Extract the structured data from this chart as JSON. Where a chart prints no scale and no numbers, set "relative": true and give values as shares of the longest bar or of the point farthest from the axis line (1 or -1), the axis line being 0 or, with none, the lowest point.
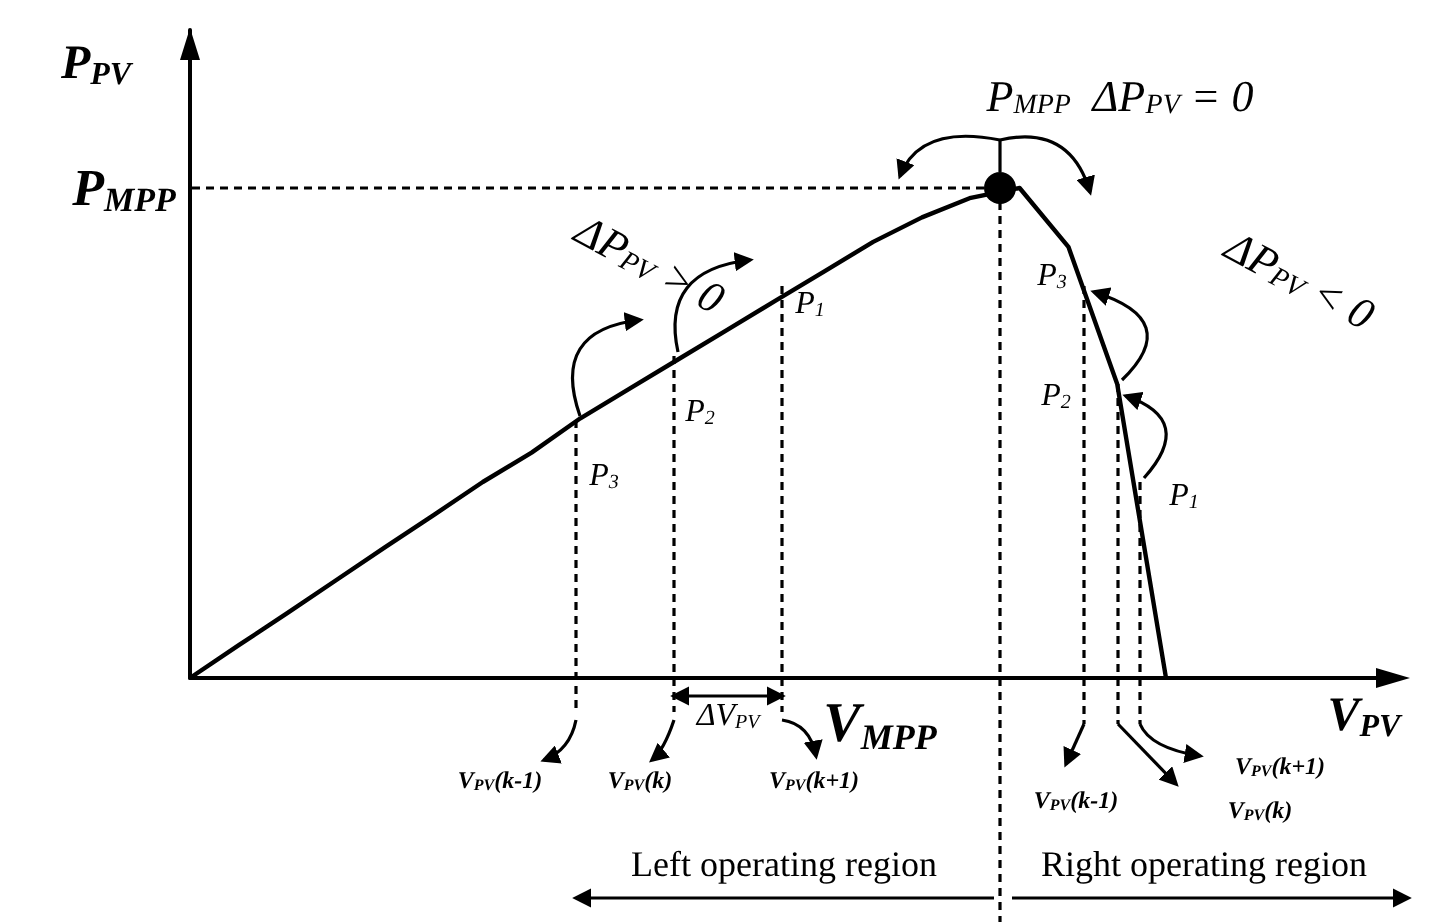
{
  "chart_data": {
    "type": "line",
    "relative": true,
    "xlabel": "V$_{PV}$",
    "ylabel": "P$_{PV}$",
    "categories": [
      null,
      null,
      null,
      null,
      null,
      null,
      null,
      null,
      null,
      null,
      null,
      null,
      null,
      null,
      null,
      null,
      null,
      null,
      null,
      null,
      null,
      null,
      null,
      null,
      null
    ],
    "series": [
      {
        "color": "#000000",
        "values": [
          0,
          0.067,
          0.133,
          0.2,
          0.267,
          0.333,
          0.4,
          0.46,
          0.53,
          0.59,
          0.65,
          0.71,
          0.77,
          0.83,
          0.89,
          0.94,
          0.98,
          1,
          0.88,
          0.6,
          0,
          null,
          null,
          null,
          null
        ]
      }
    ],
    "annotations": [
      "P$_{MPP}$",
      "P$_{MPP}$  ΔP$_{PV}$ = 0",
      "ΔP$_{PV}$ > 0",
      "ΔP$_{PV}$ < 0",
      "P$_{3}$",
      "P$_{2}$",
      "P$_{1}$",
      "P$_{3}$",
      "P$_{2}$",
      "P$_{1}$",
      "ΔV$_{PV}$",
      "V$_{MPP}$",
      "V$_{PV}$(k-1)",
      "V$_{PV}$(k)",
      "V$_{PV}$(k+1)",
      "V$_{PV}$(k-1)",
      "V$_{PV}$(k+1)",
      "V$_{PV}$(k)",
      "Left operating region",
      "Right operating region"
    ],
    "grid": false,
    "marker": "none"
  }
}
